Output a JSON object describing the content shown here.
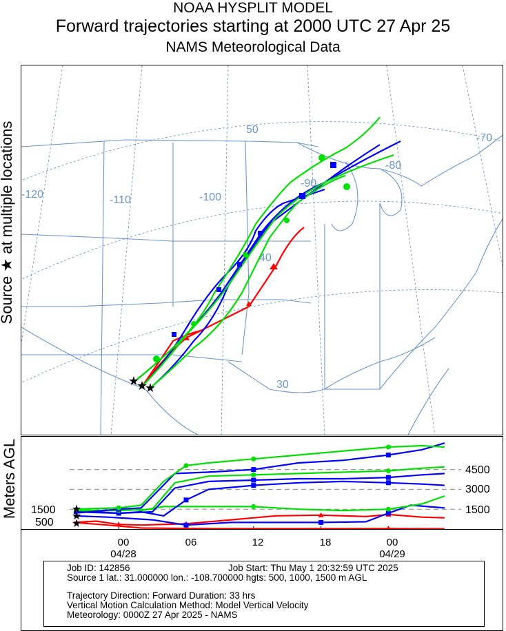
{
  "header": {
    "line1": "NOAA HYSPLIT MODEL",
    "line2": "Forward trajectories starting at 2000 UTC 27 Apr 25",
    "line3": "NAMS Meteorological Data"
  },
  "side_label": "Source ★   at multiple locations",
  "vertical_label": "Meters AGL",
  "map": {
    "lon_labels": [
      "-120",
      "-110",
      "-100",
      "-90",
      "-80",
      "-70"
    ],
    "lat_labels": [
      "50",
      "40",
      "30"
    ],
    "colors": {
      "boundary": "#6b96c9",
      "grid": "#6b96c9",
      "red": "#ff0000",
      "blue": "#0000ff",
      "green": "#00e000"
    }
  },
  "chart_data": {
    "type": "line",
    "x_unit": "hours since 2000 UTC 27 Apr 2025",
    "x_ticks": [
      "00",
      "06",
      "12",
      "18",
      "00"
    ],
    "x_tick_hours": [
      4,
      10,
      16,
      22,
      28
    ],
    "date_labels": [
      "04/28",
      "04/29"
    ],
    "date_label_hours": [
      4,
      28
    ],
    "y_axis": {
      "label": "Meters AGL",
      "source_height_labels": [
        "1500",
        "500"
      ],
      "source_heights": [
        1500,
        500
      ],
      "right_ticks": [
        "4500",
        "3000",
        "1500"
      ],
      "right_tick_values": [
        4500,
        3000,
        1500
      ]
    },
    "source_heights_m": [
      500,
      1000,
      1500
    ],
    "series": [
      {
        "color": "red",
        "height_profile": [
          {
            "h": 0,
            "z": 500
          },
          {
            "h": 3,
            "z": 300
          },
          {
            "h": 6,
            "z": 80
          },
          {
            "h": 12,
            "z": 30
          },
          {
            "h": 18,
            "z": 30
          },
          {
            "h": 24,
            "z": 30
          },
          {
            "h": 28,
            "z": 40
          },
          {
            "h": 33,
            "z": 20
          }
        ]
      },
      {
        "color": "red",
        "height_profile": [
          {
            "h": 0,
            "z": 500
          },
          {
            "h": 2,
            "z": 600
          },
          {
            "h": 4,
            "z": 350
          },
          {
            "h": 6,
            "z": 300
          },
          {
            "h": 10,
            "z": 400
          },
          {
            "h": 14,
            "z": 700
          },
          {
            "h": 18,
            "z": 1000
          },
          {
            "h": 22,
            "z": 1050
          },
          {
            "h": 26,
            "z": 950
          },
          {
            "h": 28,
            "z": 1100
          },
          {
            "h": 31,
            "z": 900
          },
          {
            "h": 33,
            "z": 850
          }
        ]
      },
      {
        "color": "blue",
        "height_profile": [
          {
            "h": 0,
            "z": 1000
          },
          {
            "h": 3,
            "z": 900
          },
          {
            "h": 5,
            "z": 800
          },
          {
            "h": 7,
            "z": 700
          },
          {
            "h": 10,
            "z": 300
          },
          {
            "h": 14,
            "z": 500
          },
          {
            "h": 18,
            "z": 500
          },
          {
            "h": 22,
            "z": 500
          },
          {
            "h": 26,
            "z": 550
          },
          {
            "h": 28,
            "z": 1200
          },
          {
            "h": 30,
            "z": 1800
          },
          {
            "h": 33,
            "z": 1600
          }
        ]
      },
      {
        "color": "green",
        "height_profile": [
          {
            "h": 0,
            "z": 1500
          },
          {
            "h": 4,
            "z": 1600
          },
          {
            "h": 6,
            "z": 1400
          },
          {
            "h": 8,
            "z": 1700
          },
          {
            "h": 12,
            "z": 1700
          },
          {
            "h": 16,
            "z": 1700
          },
          {
            "h": 20,
            "z": 1500
          },
          {
            "h": 24,
            "z": 1400
          },
          {
            "h": 28,
            "z": 1500
          },
          {
            "h": 31,
            "z": 1900
          },
          {
            "h": 33,
            "z": 2500
          }
        ]
      },
      {
        "color": "blue",
        "height_profile": [
          {
            "h": 0,
            "z": 1400
          },
          {
            "h": 4,
            "z": 1200
          },
          {
            "h": 6,
            "z": 1300
          },
          {
            "h": 8,
            "z": 1000
          },
          {
            "h": 10,
            "z": 2200
          },
          {
            "h": 12,
            "z": 3000
          },
          {
            "h": 16,
            "z": 3300
          },
          {
            "h": 20,
            "z": 3500
          },
          {
            "h": 24,
            "z": 3600
          },
          {
            "h": 28,
            "z": 3500
          },
          {
            "h": 31,
            "z": 3400
          },
          {
            "h": 33,
            "z": 3300
          }
        ]
      },
      {
        "color": "blue",
        "height_profile": [
          {
            "h": 0,
            "z": 1300
          },
          {
            "h": 4,
            "z": 1200
          },
          {
            "h": 7,
            "z": 1300
          },
          {
            "h": 9,
            "z": 3100
          },
          {
            "h": 12,
            "z": 3600
          },
          {
            "h": 16,
            "z": 3700
          },
          {
            "h": 20,
            "z": 3800
          },
          {
            "h": 24,
            "z": 3800
          },
          {
            "h": 28,
            "z": 3900
          },
          {
            "h": 31,
            "z": 4100
          },
          {
            "h": 33,
            "z": 4200
          }
        ]
      },
      {
        "color": "green",
        "height_profile": [
          {
            "h": 0,
            "z": 1400
          },
          {
            "h": 4,
            "z": 1400
          },
          {
            "h": 7,
            "z": 1500
          },
          {
            "h": 9,
            "z": 3500
          },
          {
            "h": 12,
            "z": 4000
          },
          {
            "h": 16,
            "z": 4100
          },
          {
            "h": 20,
            "z": 4200
          },
          {
            "h": 24,
            "z": 4300
          },
          {
            "h": 28,
            "z": 4400
          },
          {
            "h": 31,
            "z": 4600
          },
          {
            "h": 33,
            "z": 4700
          }
        ]
      },
      {
        "color": "blue",
        "height_profile": [
          {
            "h": 0,
            "z": 1200
          },
          {
            "h": 4,
            "z": 1500
          },
          {
            "h": 6,
            "z": 1600
          },
          {
            "h": 9,
            "z": 4200
          },
          {
            "h": 12,
            "z": 4300
          },
          {
            "h": 16,
            "z": 4500
          },
          {
            "h": 20,
            "z": 5000
          },
          {
            "h": 24,
            "z": 5200
          },
          {
            "h": 28,
            "z": 5600
          },
          {
            "h": 31,
            "z": 6000
          },
          {
            "h": 33,
            "z": 6500
          }
        ]
      },
      {
        "color": "green",
        "height_profile": [
          {
            "h": 0,
            "z": 1500
          },
          {
            "h": 4,
            "z": 1600
          },
          {
            "h": 6,
            "z": 1800
          },
          {
            "h": 8,
            "z": 3600
          },
          {
            "h": 10,
            "z": 4800
          },
          {
            "h": 12,
            "z": 5000
          },
          {
            "h": 16,
            "z": 5300
          },
          {
            "h": 20,
            "z": 5600
          },
          {
            "h": 24,
            "z": 5900
          },
          {
            "h": 28,
            "z": 6200
          },
          {
            "h": 31,
            "z": 6300
          },
          {
            "h": 33,
            "z": 6200
          }
        ]
      }
    ]
  },
  "info": {
    "job_id": "Job ID: 142856",
    "job_start": "Job Start: Thu May  1 20:32:59 UTC 2025",
    "source_line": "Source 1 lat.: 31.000000  lon.: -108.700000  hgts: 500, 1000, 1500 m AGL",
    "direction": "Trajectory Direction: Forward      Duration: 33 hrs",
    "vertical": "Vertical Motion Calculation Method:       Model Vertical Velocity",
    "meteorology": "Meteorology: 0000Z 27 Apr 2025 - NAMS"
  }
}
